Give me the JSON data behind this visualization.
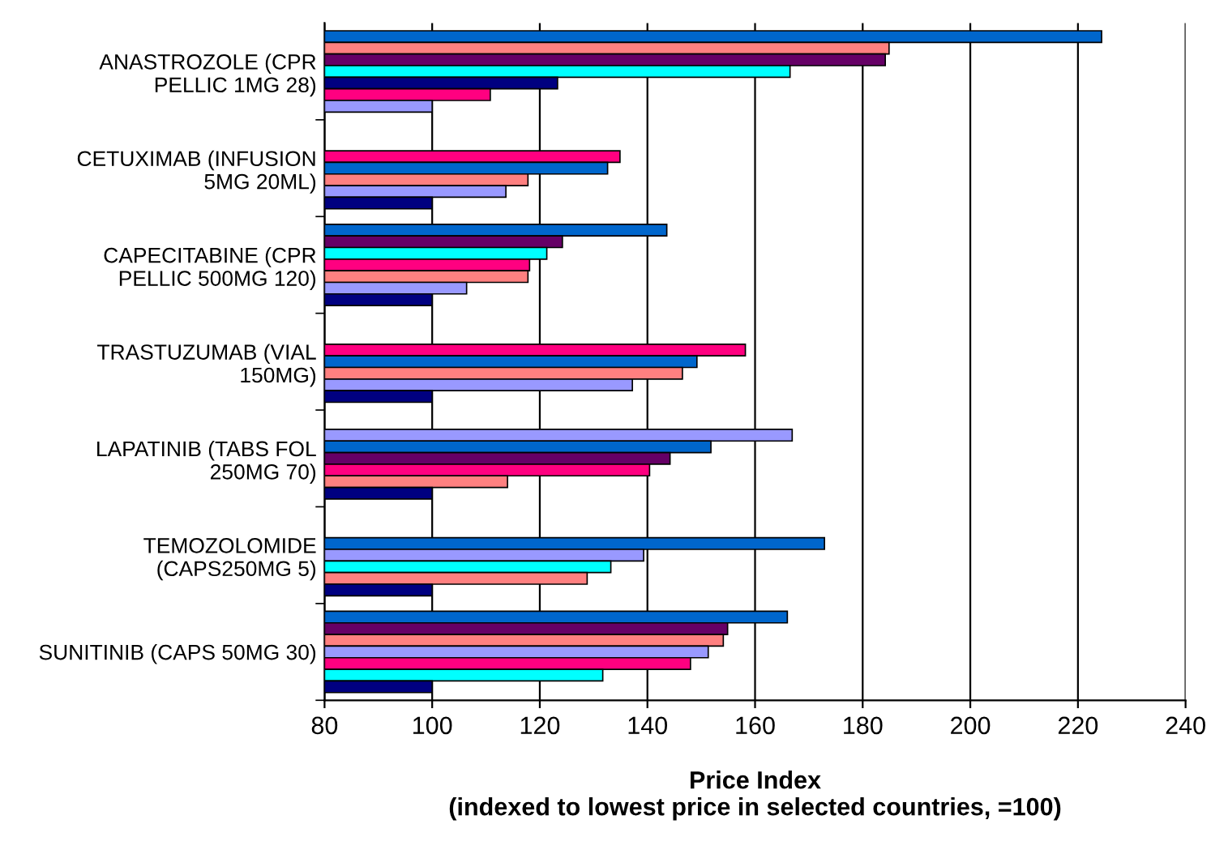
{
  "chart_data": {
    "type": "bar",
    "orientation": "horizontal",
    "xlabel": "Price Index\n(indexed to lowest price in selected countries, =100)",
    "categories": [
      "ANASTROZOLE (CPR\nPELLIC 1MG 28)",
      "CETUXIMAB (INFUSION\n5MG 20ML)",
      "CAPECITABINE (CPR\nPELLIC 500MG 120)",
      "TRASTUZUMAB (VIAL\n150MG)",
      "LAPATINIB (TABS FOL\n250MG 70)",
      "TEMOZOLOMIDE\n(CAPS250MG 5)",
      "SUNITINIB (CAPS 50MG 30)"
    ],
    "series": [
      {
        "colors": [
          "#0066cc",
          null,
          "#0066cc",
          null,
          null,
          null,
          "#0066cc"
        ],
        "values": [
          224.4,
          null,
          143.6,
          null,
          null,
          null,
          166.0
        ]
      },
      {
        "colors": [
          "#ff8080",
          null,
          "#660066",
          null,
          "#9999ff",
          null,
          "#660066"
        ],
        "values": [
          184.9,
          null,
          124.2,
          null,
          166.9,
          null,
          154.9
        ]
      },
      {
        "colors": [
          "#660066",
          "#ff0080",
          "#00ffff",
          "#ff0080",
          "#0066cc",
          "#0066cc",
          "#ff8080"
        ],
        "values": [
          184.2,
          134.9,
          121.3,
          158.2,
          151.8,
          172.9,
          154.1
        ]
      },
      {
        "colors": [
          "#00ffff",
          "#0066cc",
          "#ff0080",
          "#0066cc",
          "#660066",
          "#9999ff",
          "#9999ff"
        ],
        "values": [
          166.5,
          132.6,
          118.1,
          149.2,
          144.2,
          139.3,
          151.3
        ]
      },
      {
        "colors": [
          "#000080",
          "#ff8080",
          "#ff8080",
          "#ff8080",
          "#ff0080",
          "#00ffff",
          "#ff0080"
        ],
        "values": [
          123.3,
          117.8,
          117.8,
          146.5,
          140.4,
          133.2,
          148.0
        ]
      },
      {
        "colors": [
          "#ff0080",
          "#9999ff",
          "#9999ff",
          "#9999ff",
          "#ff8080",
          "#ff8080",
          "#00ffff"
        ],
        "values": [
          110.8,
          113.7,
          106.4,
          137.2,
          114.0,
          128.8,
          131.7
        ]
      },
      {
        "colors": [
          "#9999ff",
          "#000080",
          "#000080",
          "#000080",
          "#000080",
          "#000080",
          "#000080"
        ],
        "values": [
          100,
          100,
          100,
          100,
          100,
          100,
          100
        ]
      }
    ],
    "xlim": [
      80,
      240
    ],
    "xticks": [
      80,
      100,
      120,
      140,
      160,
      180,
      200,
      220,
      240
    ],
    "grid": "x",
    "legend": false
  }
}
